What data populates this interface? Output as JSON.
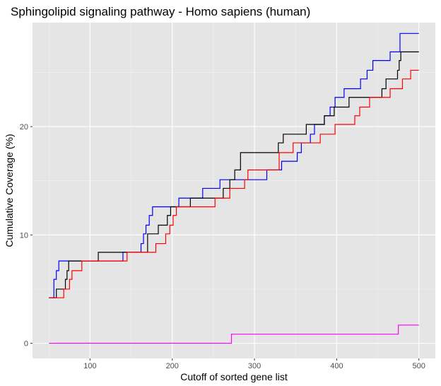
{
  "chart_data": {
    "type": "line",
    "title": "Sphingolipid signaling pathway - Homo sapiens (human)",
    "xlabel": "Cutoff of sorted gene list",
    "ylabel": "Cumulative Coverage (%)",
    "xlim": [
      30,
      520
    ],
    "ylim": [
      -1.4,
      29.6
    ],
    "x_ticks": [
      100,
      200,
      300,
      400,
      500
    ],
    "y_ticks": [
      0,
      10,
      20
    ],
    "x_tick_labels": [
      "100",
      "200",
      "300",
      "400",
      "500"
    ],
    "y_tick_labels": [
      "0",
      "10",
      "20"
    ],
    "grid": true,
    "legend": "none",
    "line_shape": "step",
    "series": [
      {
        "color": "#0000ff",
        "x": [
          50,
          56,
          59,
          62,
          65,
          140,
          162,
          165,
          168,
          172,
          176,
          186,
          208,
          237,
          258,
          280,
          315,
          333,
          352,
          357,
          368,
          373,
          385,
          392,
          398,
          409,
          429,
          437,
          444,
          465,
          477,
          500
        ],
        "y": [
          4.2,
          5.9,
          6.7,
          7.6,
          7.6,
          8.4,
          9.2,
          10.1,
          10.9,
          11.8,
          12.6,
          12.6,
          13.4,
          14.3,
          15.1,
          15.1,
          16.0,
          16.8,
          17.6,
          18.5,
          19.3,
          20.2,
          21.0,
          21.8,
          22.7,
          23.5,
          24.4,
          25.2,
          26.1,
          26.9,
          28.6,
          28.6
        ]
      },
      {
        "color": "#000000",
        "x": [
          50,
          59,
          70,
          72,
          74,
          76,
          110,
          170,
          183,
          194,
          198,
          200,
          222,
          240,
          262,
          265,
          270,
          276,
          283,
          300,
          329,
          335,
          355,
          363,
          385,
          397,
          415,
          455,
          460,
          474,
          476,
          478,
          500
        ],
        "y": [
          4.2,
          5.0,
          5.9,
          6.7,
          7.6,
          7.6,
          8.4,
          10.1,
          10.9,
          11.8,
          12.6,
          12.6,
          13.4,
          13.4,
          14.3,
          14.3,
          15.1,
          16.0,
          17.6,
          17.6,
          18.5,
          19.3,
          19.3,
          20.2,
          21.0,
          21.8,
          22.7,
          23.5,
          24.4,
          25.2,
          26.1,
          26.9,
          26.9
        ]
      },
      {
        "color": "#ff0000",
        "x": [
          50,
          68,
          75,
          78,
          90,
          115,
          138,
          145,
          180,
          192,
          197,
          201,
          205,
          210,
          252,
          270,
          288,
          292,
          330,
          347,
          362,
          380,
          398,
          422,
          428,
          440,
          447,
          465,
          480,
          490,
          500
        ],
        "y": [
          4.2,
          5.0,
          5.9,
          6.7,
          7.6,
          7.6,
          7.6,
          8.4,
          9.2,
          10.1,
          10.9,
          11.8,
          12.6,
          12.6,
          13.4,
          14.3,
          15.1,
          16.0,
          17.6,
          18.5,
          18.5,
          19.3,
          20.2,
          21.0,
          21.8,
          22.7,
          22.7,
          23.5,
          24.4,
          25.2,
          25.2
        ]
      },
      {
        "color": "#ff00ff",
        "x": [
          50,
          272,
          475,
          500
        ],
        "y": [
          0,
          0.84,
          1.68,
          1.68
        ]
      }
    ]
  }
}
